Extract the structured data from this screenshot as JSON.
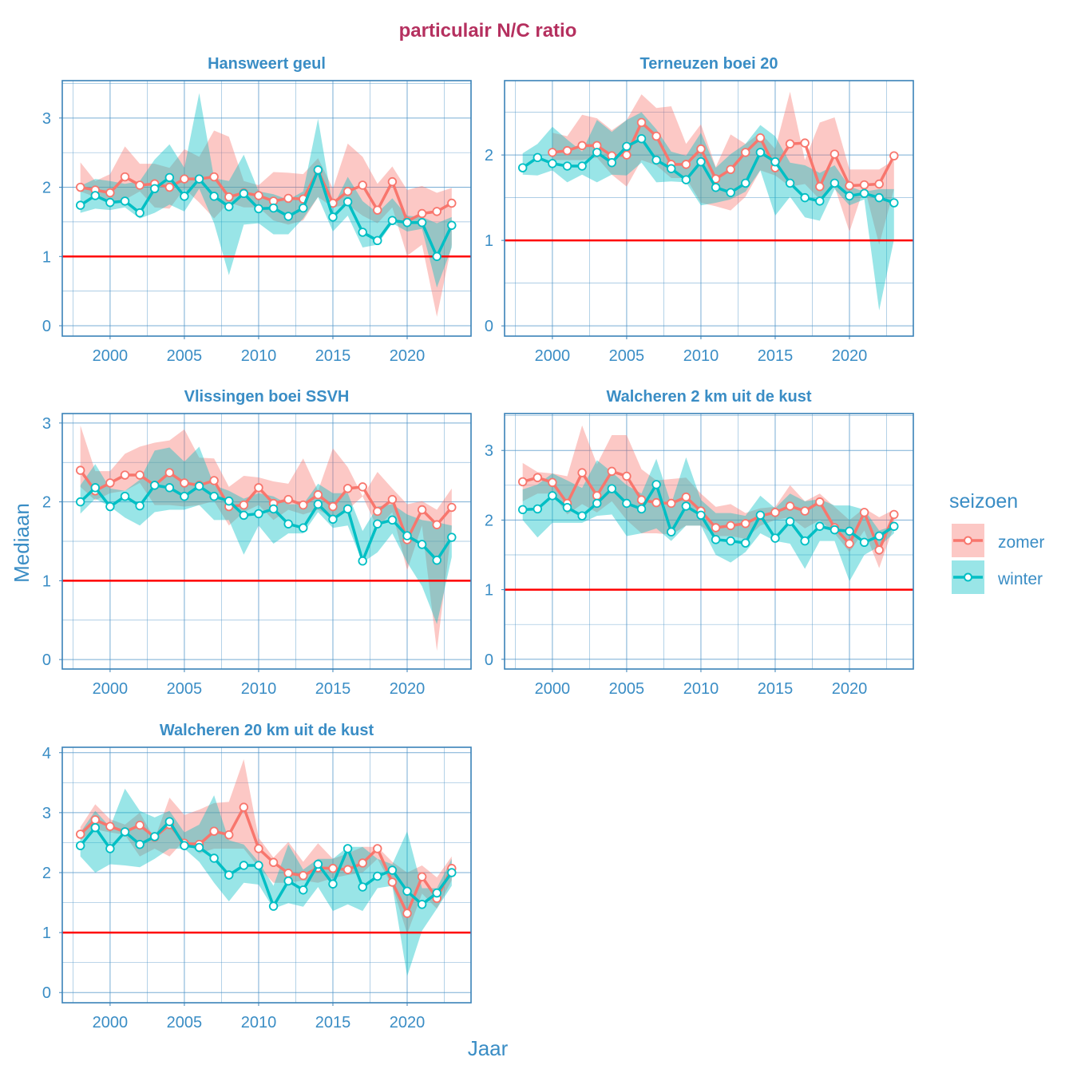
{
  "chart_data": {
    "type": "line",
    "title": "particulair N/C ratio",
    "xlabel": "Jaar",
    "ylabel": "Mediaan",
    "legend": {
      "title": "seizoen",
      "position": "right",
      "entries": [
        "zomer",
        "winter"
      ]
    },
    "colors": {
      "zomer": "#F8766D",
      "winter": "#00BFC4",
      "reference_line": "#FF0000",
      "title": "#B5305F",
      "axis": "#3A8DC5"
    },
    "reference_line_y": 1,
    "grid": true,
    "x": [
      1998,
      1999,
      2000,
      2001,
      2002,
      2003,
      2004,
      2005,
      2006,
      2007,
      2008,
      2009,
      2010,
      2011,
      2012,
      2013,
      2014,
      2015,
      2016,
      2017,
      2018,
      2019,
      2020,
      2021,
      2022,
      2023
    ],
    "x_ticks": [
      "2000",
      "2005",
      "2010",
      "2015",
      "2020"
    ],
    "panels": [
      {
        "title": "Hansweert geul",
        "ylim": [
          -0.15,
          3.54
        ],
        "y_ticks": [
          "0",
          "1",
          "2",
          "3"
        ],
        "series": [
          {
            "name": "zomer",
            "values": [
              2.0,
              1.96,
              1.92,
              2.15,
              2.03,
              2.05,
              2.0,
              2.12,
              2.12,
              2.15,
              1.86,
              1.92,
              1.88,
              1.8,
              1.84,
              1.83,
              2.24,
              1.77,
              1.94,
              2.03,
              1.67,
              2.08,
              1.51,
              1.62,
              1.65,
              1.77
            ],
            "lower": [
              1.94,
              1.86,
              1.78,
              1.82,
              1.94,
              1.71,
              1.69,
              1.98,
              1.78,
              1.55,
              1.78,
              1.71,
              1.71,
              1.52,
              1.46,
              1.52,
              1.86,
              1.71,
              1.75,
              1.59,
              1.48,
              1.71,
              1.01,
              1.17,
              0.13,
              1.17
            ],
            "upper": [
              2.36,
              2.09,
              2.19,
              2.59,
              2.34,
              2.34,
              2.28,
              2.55,
              2.44,
              2.82,
              2.73,
              2.09,
              2.03,
              2.22,
              2.21,
              2.19,
              2.42,
              1.98,
              2.63,
              2.44,
              2.05,
              2.3,
              1.96,
              2.02,
              1.92,
              1.99
            ]
          },
          {
            "name": "winter",
            "values": [
              1.74,
              1.88,
              1.78,
              1.8,
              1.63,
              1.98,
              2.14,
              1.87,
              2.12,
              1.87,
              1.72,
              1.91,
              1.69,
              1.7,
              1.58,
              1.7,
              2.25,
              1.57,
              1.79,
              1.35,
              1.23,
              1.52,
              1.49,
              1.49,
              1.0,
              1.45
            ],
            "lower": [
              1.63,
              1.69,
              1.67,
              1.71,
              1.55,
              1.63,
              1.75,
              1.65,
              1.98,
              1.48,
              0.73,
              1.46,
              1.48,
              1.32,
              1.32,
              1.55,
              1.86,
              1.36,
              1.59,
              1.13,
              1.17,
              1.48,
              1.36,
              1.4,
              0.55,
              1.13
            ],
            "upper": [
              2.02,
              2.12,
              2.09,
              2.05,
              2.09,
              2.4,
              2.62,
              2.28,
              3.36,
              2.13,
              2.09,
              2.47,
              1.94,
              1.9,
              1.82,
              1.94,
              2.99,
              1.71,
              2.15,
              1.8,
              1.63,
              1.84,
              1.59,
              1.57,
              1.48,
              1.57
            ]
          }
        ]
      },
      {
        "title": "Terneuzen boei 20",
        "ylim": [
          -0.12,
          2.87
        ],
        "y_ticks": [
          "0",
          "1",
          "2"
        ],
        "series": [
          {
            "name": "zomer",
            "values": [
              null,
              null,
              2.03,
              2.05,
              2.11,
              2.11,
              1.99,
              2.0,
              2.38,
              2.22,
              1.89,
              1.89,
              2.07,
              1.72,
              1.83,
              2.03,
              2.2,
              1.85,
              2.13,
              2.14,
              1.63,
              2.01,
              1.64,
              1.65,
              1.66,
              1.99
            ],
            "lower": [
              null,
              null,
              1.94,
              1.94,
              1.94,
              1.97,
              1.77,
              1.63,
              1.94,
              1.88,
              1.73,
              1.73,
              1.44,
              1.4,
              1.35,
              1.51,
              1.82,
              1.76,
              1.63,
              1.66,
              1.48,
              1.63,
              1.1,
              1.63,
              0.95,
              1.6
            ],
            "upper": [
              null,
              null,
              2.26,
              2.22,
              2.47,
              2.43,
              2.29,
              2.41,
              2.71,
              2.55,
              2.57,
              2.13,
              2.36,
              1.86,
              2.24,
              2.13,
              2.26,
              2.07,
              2.74,
              1.94,
              2.38,
              2.44,
              1.83,
              1.83,
              1.83,
              1.94
            ]
          },
          {
            "name": "winter",
            "values": [
              1.85,
              1.97,
              1.9,
              1.87,
              1.87,
              2.03,
              1.91,
              2.1,
              2.19,
              1.94,
              1.84,
              1.71,
              1.92,
              1.62,
              1.56,
              1.67,
              2.03,
              1.92,
              1.67,
              1.5,
              1.46,
              1.67,
              1.52,
              1.55,
              1.5,
              1.44
            ],
            "lower": [
              1.77,
              1.76,
              1.82,
              1.68,
              1.77,
              1.68,
              1.77,
              1.76,
              1.91,
              1.68,
              1.69,
              1.68,
              1.41,
              1.44,
              1.48,
              1.57,
              1.82,
              1.29,
              1.51,
              1.27,
              1.23,
              1.6,
              1.41,
              1.48,
              0.18,
              1.01
            ],
            "upper": [
              2.02,
              2.13,
              2.33,
              2.18,
              2.04,
              2.41,
              2.27,
              2.41,
              2.5,
              2.3,
              2.04,
              1.99,
              2.26,
              1.85,
              2.01,
              2.13,
              2.35,
              2.22,
              1.91,
              1.88,
              1.79,
              1.88,
              1.63,
              1.57,
              1.6,
              1.6
            ]
          }
        ]
      },
      {
        "title": "Vlissingen boei SSVH",
        "ylim": [
          -0.12,
          3.12
        ],
        "y_ticks": [
          "0",
          "1",
          "2",
          "3"
        ],
        "series": [
          {
            "name": "zomer",
            "values": [
              2.4,
              2.14,
              2.24,
              2.34,
              2.34,
              2.21,
              2.37,
              2.24,
              2.21,
              2.27,
              1.94,
              1.96,
              2.18,
              1.98,
              2.03,
              1.96,
              2.09,
              1.94,
              2.17,
              2.19,
              1.88,
              2.03,
              1.52,
              1.9,
              1.71,
              1.93
            ],
            "lower": [
              2.19,
              2.02,
              2.11,
              2.14,
              2.24,
              1.96,
              1.96,
              1.94,
              1.96,
              2.01,
              1.7,
              1.87,
              1.96,
              1.77,
              1.9,
              1.84,
              1.9,
              1.8,
              1.9,
              2.07,
              1.67,
              1.87,
              1.13,
              1.7,
              0.11,
              1.67
            ],
            "upper": [
              2.97,
              2.39,
              2.39,
              2.61,
              2.7,
              2.75,
              2.78,
              2.92,
              2.56,
              2.55,
              2.19,
              2.33,
              2.31,
              2.26,
              2.23,
              2.55,
              2.14,
              2.68,
              2.44,
              2.07,
              2.38,
              2.17,
              1.97,
              2.01,
              1.9,
              2.17
            ]
          },
          {
            "name": "winter",
            "values": [
              2.0,
              2.18,
              1.94,
              2.07,
              1.95,
              2.21,
              2.18,
              2.07,
              2.2,
              2.07,
              2.01,
              1.83,
              1.85,
              1.91,
              1.72,
              1.67,
              1.97,
              1.78,
              1.91,
              1.25,
              1.72,
              1.77,
              1.57,
              1.46,
              1.26,
              1.55
            ],
            "lower": [
              1.85,
              2.04,
              1.94,
              1.8,
              1.7,
              1.87,
              1.9,
              1.9,
              1.96,
              1.77,
              1.77,
              1.33,
              1.7,
              1.47,
              1.6,
              1.6,
              1.87,
              1.67,
              1.7,
              1.23,
              1.36,
              1.6,
              1.23,
              0.93,
              0.45,
              1.3
            ],
            "upper": [
              2.21,
              2.48,
              2.17,
              2.14,
              2.28,
              2.65,
              2.69,
              2.51,
              2.7,
              2.21,
              2.14,
              2.04,
              2.11,
              2.07,
              1.97,
              1.97,
              2.23,
              2.11,
              2.11,
              1.63,
              1.94,
              1.97,
              1.84,
              1.77,
              1.74,
              1.7
            ]
          }
        ]
      },
      {
        "title": "Walcheren 2 km uit de kust",
        "ylim": [
          -0.14,
          3.53
        ],
        "y_ticks": [
          "0",
          "1",
          "2",
          "3"
        ],
        "series": [
          {
            "name": "zomer",
            "values": [
              2.55,
              2.61,
              2.54,
              2.24,
              2.68,
              2.35,
              2.7,
              2.63,
              2.29,
              2.25,
              2.24,
              2.33,
              2.13,
              1.89,
              1.92,
              1.95,
              2.06,
              2.11,
              2.2,
              2.13,
              2.26,
              1.89,
              1.66,
              2.11,
              1.57,
              2.08
            ],
            "lower": [
              2.27,
              2.38,
              2.38,
              2.08,
              2.23,
              2.11,
              2.27,
              2.0,
              1.81,
              1.81,
              1.79,
              1.92,
              1.92,
              1.77,
              1.77,
              1.73,
              1.92,
              2.0,
              2.04,
              1.88,
              2.0,
              1.81,
              1.54,
              1.85,
              1.31,
              1.92
            ],
            "upper": [
              2.82,
              2.69,
              2.67,
              2.63,
              3.36,
              2.8,
              3.22,
              3.22,
              2.73,
              2.57,
              2.59,
              2.61,
              2.38,
              2.19,
              2.23,
              2.1,
              2.17,
              2.19,
              2.5,
              2.27,
              2.38,
              2.19,
              2.0,
              2.17,
              2.04,
              2.15
            ]
          },
          {
            "name": "winter",
            "values": [
              2.15,
              2.16,
              2.35,
              2.18,
              2.06,
              2.24,
              2.45,
              2.24,
              2.16,
              2.51,
              1.83,
              2.2,
              2.07,
              1.72,
              1.7,
              1.67,
              2.07,
              1.74,
              1.98,
              1.7,
              1.91,
              1.86,
              1.84,
              1.68,
              1.77,
              1.91
            ],
            "lower": [
              2.0,
              1.75,
              1.96,
              1.96,
              1.96,
              2.06,
              2.08,
              1.77,
              1.81,
              1.88,
              1.7,
              1.92,
              1.92,
              1.5,
              1.39,
              1.54,
              1.81,
              1.7,
              1.66,
              1.3,
              1.7,
              1.7,
              1.12,
              1.5,
              1.62,
              1.81
            ],
            "upper": [
              2.44,
              2.51,
              2.67,
              2.57,
              2.46,
              2.86,
              2.69,
              2.5,
              2.38,
              2.88,
              2.23,
              2.9,
              2.29,
              2.1,
              2.1,
              2.06,
              2.35,
              2.17,
              2.38,
              2.27,
              2.3,
              2.21,
              2.21,
              2.15,
              1.85,
              1.92
            ]
          }
        ]
      },
      {
        "title": "Walcheren 20 km uit de kust",
        "ylim": [
          -0.17,
          4.09
        ],
        "y_ticks": [
          "0",
          "1",
          "2",
          "3",
          "4"
        ],
        "series": [
          {
            "name": "zomer",
            "values": [
              2.64,
              2.88,
              2.77,
              2.68,
              2.79,
              2.59,
              2.8,
              2.49,
              2.47,
              2.69,
              2.63,
              3.09,
              2.4,
              2.17,
              1.99,
              1.95,
              2.08,
              2.07,
              2.05,
              2.16,
              2.4,
              1.84,
              1.32,
              1.93,
              1.57,
              2.07
            ],
            "lower": [
              2.54,
              2.72,
              2.67,
              2.63,
              2.27,
              2.4,
              2.27,
              2.54,
              2.32,
              2.4,
              2.4,
              2.4,
              2.09,
              1.83,
              1.83,
              1.87,
              1.83,
              1.91,
              1.96,
              2.0,
              2.23,
              1.78,
              0.98,
              1.65,
              1.4,
              1.87
            ],
            "upper": [
              2.76,
              3.14,
              2.89,
              2.8,
              3.0,
              2.56,
              3.25,
              2.96,
              3.05,
              3.16,
              3.18,
              3.89,
              2.58,
              2.25,
              2.51,
              2.18,
              2.49,
              2.23,
              2.32,
              2.43,
              2.43,
              2.18,
              2.0,
              2.12,
              1.92,
              2.27
            ]
          },
          {
            "name": "winter",
            "values": [
              2.45,
              2.75,
              2.4,
              2.68,
              2.47,
              2.6,
              2.85,
              2.45,
              2.42,
              2.24,
              1.96,
              2.12,
              2.12,
              1.44,
              1.86,
              1.71,
              2.14,
              1.81,
              2.4,
              1.76,
              1.94,
              2.04,
              1.69,
              1.47,
              1.66,
              2.0
            ],
            "lower": [
              2.27,
              2.0,
              2.14,
              2.12,
              2.09,
              2.23,
              2.4,
              2.4,
              2.18,
              1.83,
              1.52,
              1.83,
              1.8,
              1.4,
              1.49,
              1.43,
              1.76,
              1.36,
              1.47,
              1.36,
              1.74,
              1.78,
              0.27,
              1.03,
              1.4,
              1.78
            ],
            "upper": [
              2.67,
              3.03,
              2.76,
              3.4,
              3.03,
              2.92,
              3.03,
              2.67,
              2.8,
              3.29,
              2.54,
              2.47,
              2.18,
              1.78,
              2.47,
              2.05,
              2.23,
              2.23,
              2.43,
              2.43,
              2.23,
              2.14,
              2.69,
              1.74,
              1.74,
              2.23
            ]
          }
        ]
      }
    ]
  }
}
